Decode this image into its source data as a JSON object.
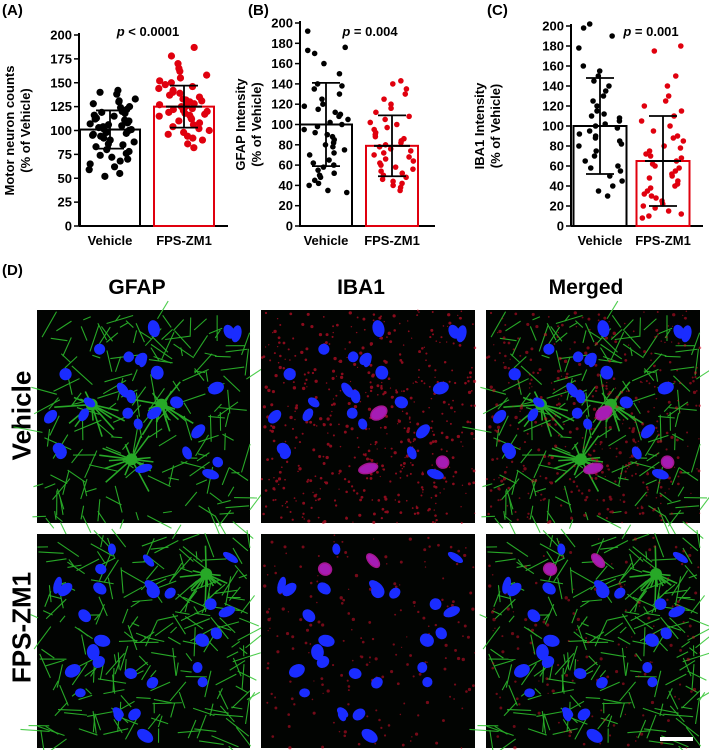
{
  "chart_data": [
    {
      "panel": "(A)",
      "type": "bar",
      "ylabel": "Motor neuron counts\n(% of Vehicle)",
      "ylim": [
        0,
        200
      ],
      "yticks": [
        0,
        25,
        50,
        75,
        100,
        125,
        150,
        175,
        200
      ],
      "categories": [
        "Vehicle",
        "FPS-ZM1"
      ],
      "p_prefix": "p",
      "p_value": " < 0.0001",
      "series": [
        {
          "category": "Vehicle",
          "mean": 101,
          "sd": 20,
          "color": "#000000",
          "points": [
            142,
            140,
            138,
            133,
            131,
            130,
            128,
            125,
            124,
            122,
            120,
            119,
            118,
            116,
            115,
            113,
            112,
            111,
            110,
            108,
            107,
            106,
            105,
            104,
            103,
            102,
            101,
            100,
            99,
            98,
            97,
            96,
            95,
            94,
            92,
            90,
            88,
            86,
            85,
            83,
            80,
            78,
            76,
            74,
            72,
            70,
            68,
            65,
            62,
            59,
            55,
            52
          ]
        },
        {
          "category": "FPS-ZM1",
          "mean": 125,
          "sd": 22,
          "color": "#e0000e",
          "points": [
            187,
            178,
            170,
            165,
            162,
            158,
            155,
            152,
            150,
            148,
            146,
            144,
            142,
            140,
            139,
            137,
            135,
            133,
            132,
            131,
            130,
            128,
            127,
            126,
            125,
            124,
            123,
            122,
            121,
            120,
            119,
            118,
            117,
            116,
            115,
            113,
            112,
            110,
            108,
            106,
            104,
            102,
            100,
            98,
            96,
            94,
            92,
            90,
            86,
            82
          ]
        }
      ]
    },
    {
      "panel": "(B)",
      "type": "bar",
      "ylabel": "GFAP Intensity\n(% of Vehicle)",
      "ylim": [
        0,
        200
      ],
      "yticks": [
        0,
        20,
        40,
        60,
        80,
        100,
        120,
        140,
        160,
        180,
        200
      ],
      "categories": [
        "Vehicle",
        "FPS-ZM1"
      ],
      "p_prefix": "p",
      "p_value": " = 0.004",
      "series": [
        {
          "category": "Vehicle",
          "mean": 100,
          "sd": 41,
          "color": "#000000",
          "points": [
            192,
            176,
            173,
            170,
            160,
            150,
            140,
            138,
            135,
            130,
            125,
            120,
            118,
            115,
            112,
            110,
            108,
            105,
            102,
            100,
            98,
            95,
            92,
            90,
            88,
            85,
            82,
            80,
            78,
            75,
            72,
            70,
            65,
            62,
            60,
            58,
            55,
            52,
            50,
            48,
            45,
            42,
            40,
            35,
            33
          ]
        },
        {
          "category": "FPS-ZM1",
          "mean": 79,
          "sd": 30,
          "color": "#e0000e",
          "points": [
            143,
            140,
            135,
            130,
            125,
            120,
            116,
            112,
            108,
            105,
            102,
            100,
            97,
            95,
            92,
            90,
            88,
            86,
            84,
            82,
            80,
            78,
            76,
            74,
            72,
            70,
            68,
            66,
            64,
            62,
            60,
            58,
            56,
            54,
            52,
            50,
            48,
            46,
            44,
            42,
            40,
            38,
            35
          ]
        }
      ]
    },
    {
      "panel": "(C)",
      "type": "bar",
      "ylabel": "IBA1 Intensity\n(% of Vehicle)",
      "ylim": [
        0,
        200
      ],
      "yticks": [
        0,
        20,
        40,
        60,
        80,
        100,
        120,
        140,
        160,
        180,
        200
      ],
      "categories": [
        "Vehicle",
        "FPS-ZM1"
      ],
      "p_prefix": "p",
      "p_value": " = 0.001",
      "series": [
        {
          "category": "Vehicle",
          "mean": 100,
          "sd": 48,
          "color": "#000000",
          "points": [
            202,
            198,
            190,
            178,
            160,
            155,
            150,
            145,
            140,
            135,
            130,
            125,
            120,
            115,
            112,
            110,
            108,
            105,
            102,
            100,
            98,
            95,
            92,
            90,
            88,
            85,
            82,
            80,
            75,
            70,
            65,
            60,
            58,
            55,
            50,
            45,
            40,
            35,
            30
          ]
        },
        {
          "category": "FPS-ZM1",
          "mean": 65,
          "sd": 45,
          "color": "#e0000e",
          "points": [
            180,
            175,
            150,
            140,
            130,
            125,
            120,
            115,
            110,
            105,
            100,
            95,
            90,
            88,
            85,
            80,
            78,
            75,
            72,
            70,
            68,
            65,
            62,
            60,
            58,
            55,
            52,
            50,
            48,
            45,
            42,
            40,
            38,
            35,
            32,
            30,
            28,
            25,
            22,
            20,
            18,
            15,
            12,
            10,
            8
          ]
        }
      ]
    }
  ],
  "panel_d": {
    "label": "(D)",
    "columns": [
      "GFAP",
      "IBA1",
      "Merged"
    ],
    "rows": [
      "Vehicle",
      "FPS-ZM1"
    ]
  },
  "colors": {
    "vehicle": "#000000",
    "fps": "#e0000e",
    "gfap_green": "#2ec52e",
    "iba1_red": "#d4102a",
    "dapi_blue": "#1a2cff",
    "image_bg": "#020402"
  }
}
